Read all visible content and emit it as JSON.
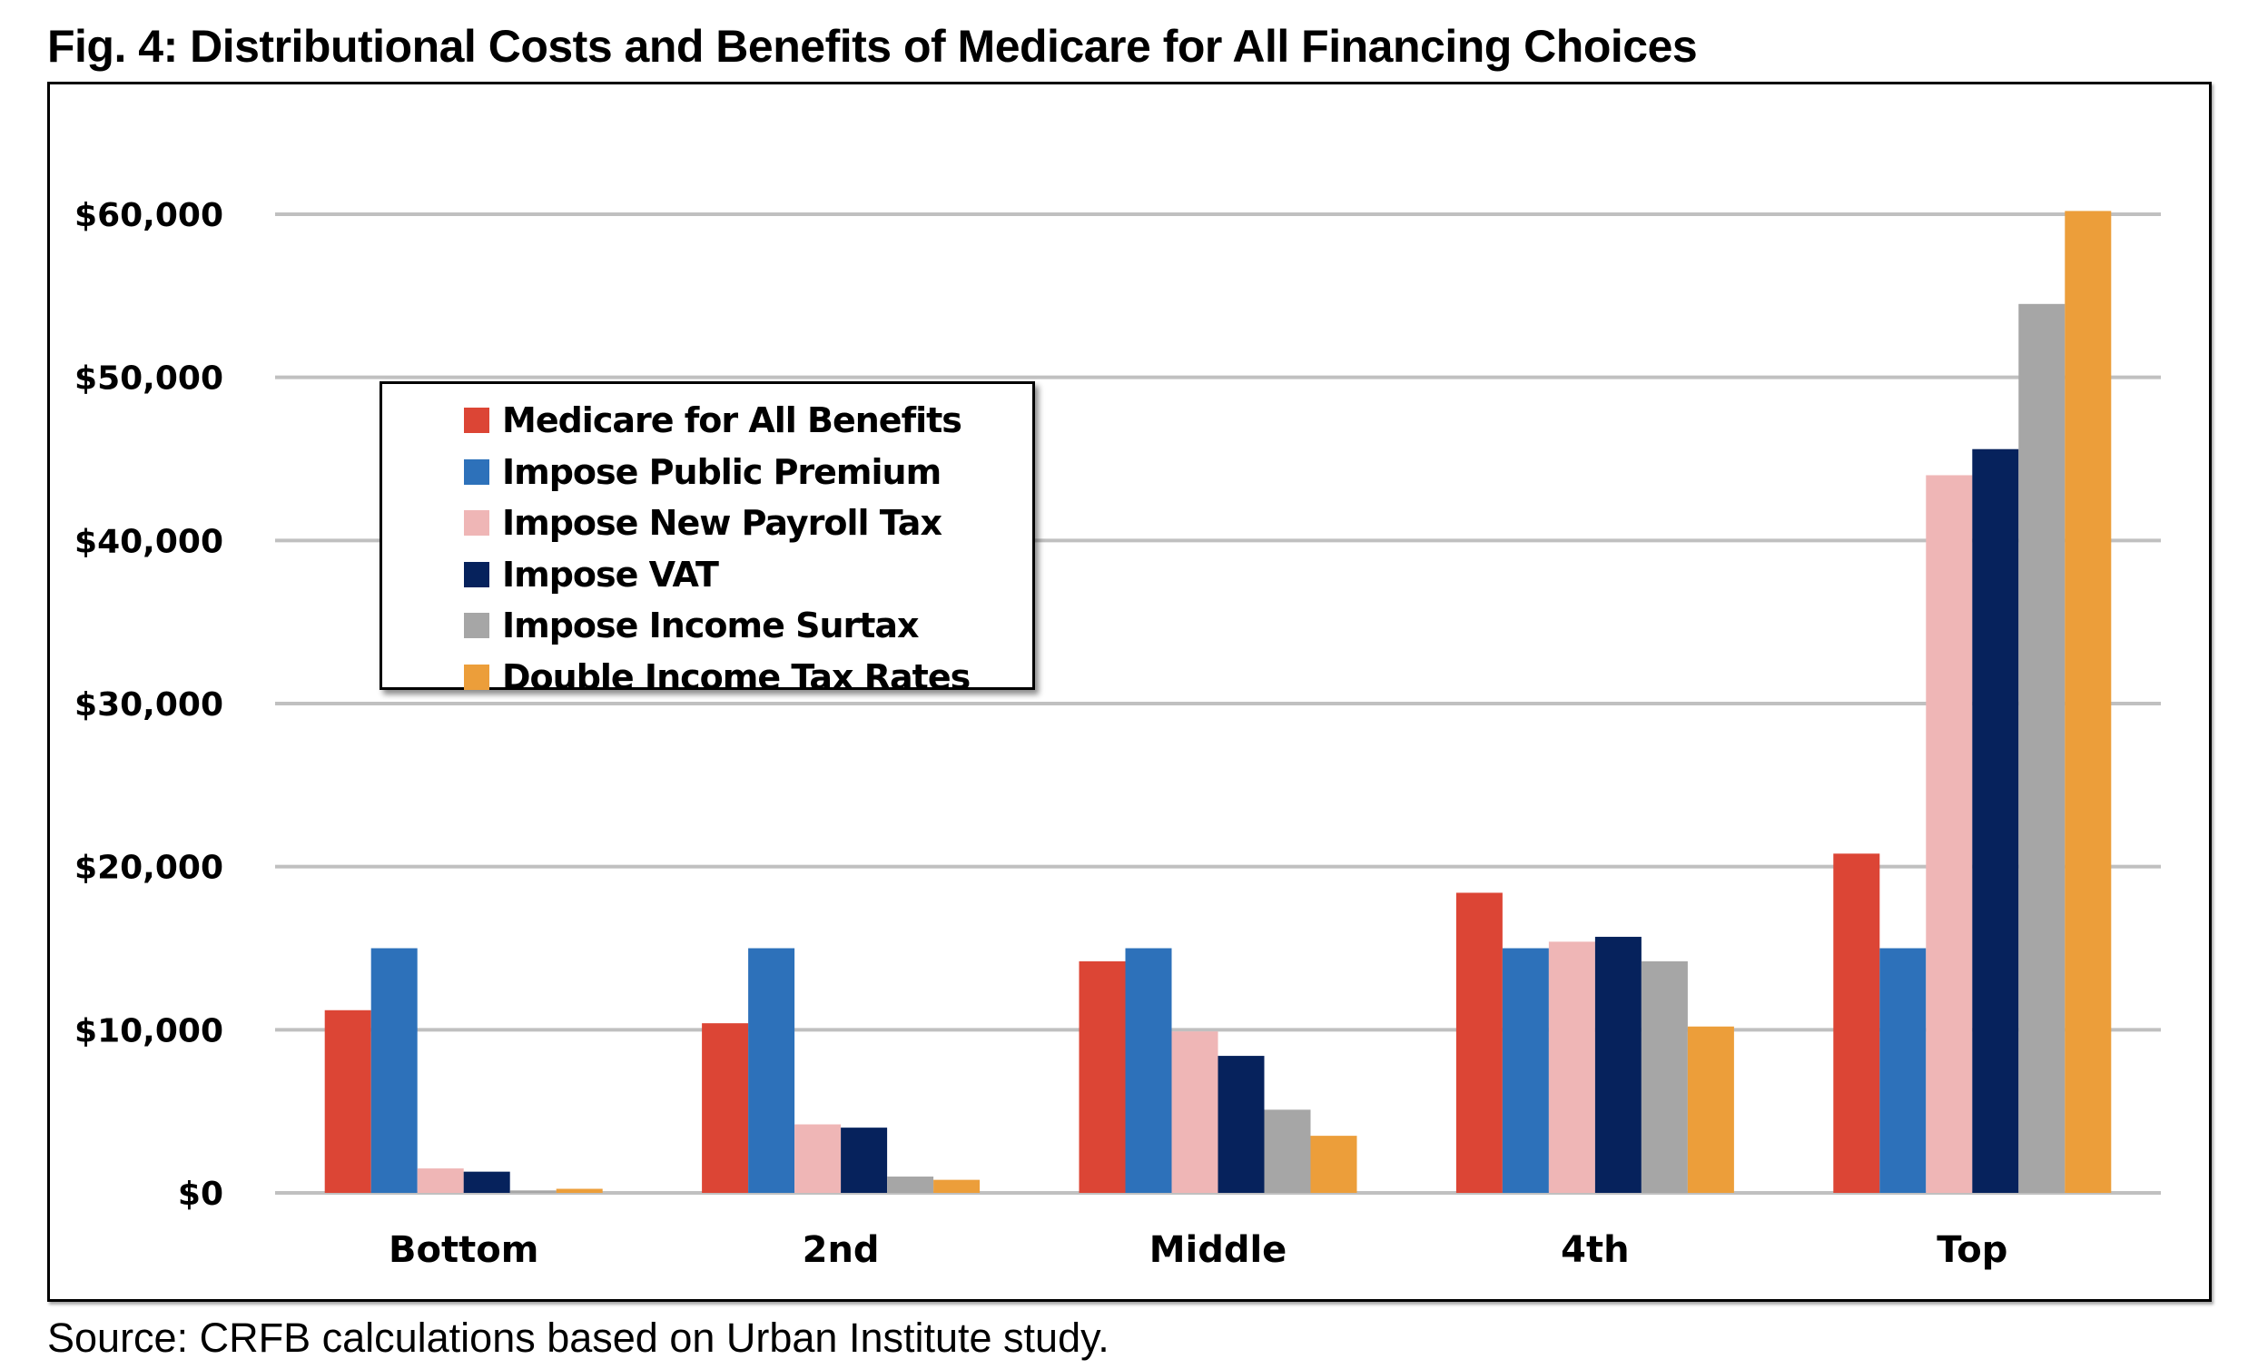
{
  "title": "Fig. 4: Distributional Costs and Benefits of Medicare for All Financing Choices",
  "source": "Source: CRFB calculations based on Urban Institute study.",
  "chart_data": {
    "type": "bar",
    "title": "Fig. 4: Distributional Costs and Benefits of Medicare for All Financing Choices",
    "xlabel": "",
    "ylabel": "",
    "categories": [
      "Bottom",
      "2nd",
      "Middle",
      "4th",
      "Top"
    ],
    "ylim": [
      0,
      60000
    ],
    "yticks": [
      0,
      10000,
      20000,
      30000,
      40000,
      50000,
      60000
    ],
    "ytick_labels": [
      "$0",
      "$10,000",
      "$20,000",
      "$30,000",
      "$40,000",
      "$50,000",
      "$60,000"
    ],
    "grid": true,
    "legend_position": "upper-left inside plot",
    "series": [
      {
        "name": "Medicare for All Benefits",
        "color": "#dc4535",
        "values": [
          11200,
          10400,
          14200,
          18400,
          20800
        ]
      },
      {
        "name": "Impose Public Premium",
        "color": "#2d71ba",
        "values": [
          15000,
          15000,
          15000,
          15000,
          15000
        ]
      },
      {
        "name": "Impose New Payroll Tax",
        "color": "#efb6b6",
        "values": [
          1500,
          4200,
          9900,
          15400,
          44000
        ]
      },
      {
        "name": "Impose VAT",
        "color": "#06225c",
        "values": [
          1300,
          4000,
          8400,
          15700,
          45600
        ]
      },
      {
        "name": "Impose Income Surtax",
        "color": "#a6a6a6",
        "values": [
          150,
          1000,
          5100,
          14200,
          54500
        ]
      },
      {
        "name": "Double Income Tax Rates",
        "color": "#ec9e3a",
        "values": [
          250,
          800,
          3500,
          10200,
          60200
        ]
      }
    ]
  }
}
